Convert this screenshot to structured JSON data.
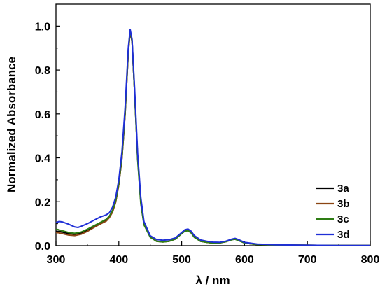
{
  "chart_data": {
    "type": "line",
    "xlabel": "λ / nm",
    "ylabel": "Normalized Absorbance",
    "xlim": [
      300,
      800
    ],
    "ylim": [
      0,
      1.1
    ],
    "xticks": [
      300,
      400,
      500,
      600,
      700,
      800
    ],
    "yticks": [
      0.0,
      0.2,
      0.4,
      0.6,
      0.8,
      1.0
    ],
    "xtick_labels": [
      "300",
      "400",
      "500",
      "600",
      "700",
      "800"
    ],
    "ytick_labels": [
      "0.0",
      "0.2",
      "0.4",
      "0.6",
      "0.8",
      "1.0"
    ],
    "grid": false,
    "legend_position": "bottom-right",
    "series": [
      {
        "name": "3a",
        "color": "#000000",
        "points": [
          [
            300,
            0.065
          ],
          [
            305,
            0.065
          ],
          [
            310,
            0.062
          ],
          [
            320,
            0.055
          ],
          [
            330,
            0.052
          ],
          [
            340,
            0.058
          ],
          [
            350,
            0.07
          ],
          [
            360,
            0.085
          ],
          [
            370,
            0.1
          ],
          [
            380,
            0.115
          ],
          [
            385,
            0.13
          ],
          [
            390,
            0.155
          ],
          [
            395,
            0.2
          ],
          [
            400,
            0.28
          ],
          [
            405,
            0.4
          ],
          [
            410,
            0.6
          ],
          [
            415,
            0.88
          ],
          [
            418,
            0.975
          ],
          [
            421,
            0.93
          ],
          [
            425,
            0.7
          ],
          [
            430,
            0.4
          ],
          [
            435,
            0.2
          ],
          [
            440,
            0.1
          ],
          [
            450,
            0.04
          ],
          [
            460,
            0.02
          ],
          [
            470,
            0.018
          ],
          [
            480,
            0.02
          ],
          [
            490,
            0.03
          ],
          [
            500,
            0.055
          ],
          [
            505,
            0.068
          ],
          [
            510,
            0.07
          ],
          [
            515,
            0.06
          ],
          [
            520,
            0.04
          ],
          [
            530,
            0.02
          ],
          [
            540,
            0.015
          ],
          [
            550,
            0.012
          ],
          [
            560,
            0.012
          ],
          [
            570,
            0.018
          ],
          [
            580,
            0.028
          ],
          [
            585,
            0.03
          ],
          [
            590,
            0.025
          ],
          [
            600,
            0.012
          ],
          [
            620,
            0.005
          ],
          [
            650,
            0.003
          ],
          [
            700,
            0.002
          ],
          [
            750,
            0.001
          ],
          [
            800,
            0.001
          ]
        ]
      },
      {
        "name": "3b",
        "color": "#8b4513",
        "points": [
          [
            300,
            0.06
          ],
          [
            305,
            0.058
          ],
          [
            310,
            0.055
          ],
          [
            320,
            0.048
          ],
          [
            330,
            0.046
          ],
          [
            340,
            0.052
          ],
          [
            350,
            0.065
          ],
          [
            360,
            0.082
          ],
          [
            370,
            0.098
          ],
          [
            380,
            0.112
          ],
          [
            385,
            0.128
          ],
          [
            390,
            0.152
          ],
          [
            395,
            0.198
          ],
          [
            400,
            0.278
          ],
          [
            405,
            0.4
          ],
          [
            410,
            0.6
          ],
          [
            415,
            0.88
          ],
          [
            418,
            0.978
          ],
          [
            421,
            0.932
          ],
          [
            425,
            0.7
          ],
          [
            430,
            0.4
          ],
          [
            435,
            0.2
          ],
          [
            440,
            0.1
          ],
          [
            450,
            0.04
          ],
          [
            460,
            0.02
          ],
          [
            470,
            0.017
          ],
          [
            480,
            0.02
          ],
          [
            490,
            0.03
          ],
          [
            500,
            0.056
          ],
          [
            505,
            0.068
          ],
          [
            510,
            0.072
          ],
          [
            515,
            0.062
          ],
          [
            520,
            0.04
          ],
          [
            530,
            0.02
          ],
          [
            540,
            0.015
          ],
          [
            550,
            0.012
          ],
          [
            560,
            0.012
          ],
          [
            570,
            0.018
          ],
          [
            580,
            0.028
          ],
          [
            585,
            0.031
          ],
          [
            590,
            0.025
          ],
          [
            600,
            0.012
          ],
          [
            620,
            0.005
          ],
          [
            650,
            0.003
          ],
          [
            700,
            0.002
          ],
          [
            750,
            0.001
          ],
          [
            800,
            0.001
          ]
        ]
      },
      {
        "name": "3c",
        "color": "#2e7d14",
        "points": [
          [
            300,
            0.075
          ],
          [
            305,
            0.072
          ],
          [
            310,
            0.068
          ],
          [
            320,
            0.06
          ],
          [
            330,
            0.056
          ],
          [
            340,
            0.062
          ],
          [
            350,
            0.075
          ],
          [
            360,
            0.09
          ],
          [
            370,
            0.105
          ],
          [
            380,
            0.12
          ],
          [
            385,
            0.135
          ],
          [
            390,
            0.16
          ],
          [
            395,
            0.205
          ],
          [
            400,
            0.285
          ],
          [
            405,
            0.41
          ],
          [
            410,
            0.61
          ],
          [
            415,
            0.89
          ],
          [
            418,
            0.98
          ],
          [
            421,
            0.935
          ],
          [
            425,
            0.7
          ],
          [
            430,
            0.39
          ],
          [
            435,
            0.19
          ],
          [
            440,
            0.095
          ],
          [
            450,
            0.038
          ],
          [
            460,
            0.02
          ],
          [
            470,
            0.017
          ],
          [
            480,
            0.02
          ],
          [
            490,
            0.03
          ],
          [
            500,
            0.055
          ],
          [
            505,
            0.066
          ],
          [
            510,
            0.068
          ],
          [
            515,
            0.058
          ],
          [
            520,
            0.038
          ],
          [
            530,
            0.02
          ],
          [
            540,
            0.015
          ],
          [
            550,
            0.012
          ],
          [
            560,
            0.012
          ],
          [
            570,
            0.018
          ],
          [
            580,
            0.027
          ],
          [
            585,
            0.029
          ],
          [
            590,
            0.024
          ],
          [
            600,
            0.012
          ],
          [
            620,
            0.005
          ],
          [
            650,
            0.003
          ],
          [
            700,
            0.002
          ],
          [
            750,
            0.001
          ],
          [
            800,
            0.001
          ]
        ]
      },
      {
        "name": "3d",
        "color": "#1f2fd6",
        "points": [
          [
            300,
            0.105
          ],
          [
            305,
            0.11
          ],
          [
            310,
            0.108
          ],
          [
            320,
            0.098
          ],
          [
            330,
            0.085
          ],
          [
            335,
            0.083
          ],
          [
            340,
            0.088
          ],
          [
            350,
            0.1
          ],
          [
            360,
            0.115
          ],
          [
            370,
            0.13
          ],
          [
            380,
            0.14
          ],
          [
            385,
            0.15
          ],
          [
            390,
            0.175
          ],
          [
            395,
            0.22
          ],
          [
            400,
            0.3
          ],
          [
            405,
            0.43
          ],
          [
            410,
            0.63
          ],
          [
            415,
            0.9
          ],
          [
            418,
            0.985
          ],
          [
            421,
            0.94
          ],
          [
            425,
            0.72
          ],
          [
            430,
            0.42
          ],
          [
            435,
            0.22
          ],
          [
            440,
            0.11
          ],
          [
            450,
            0.045
          ],
          [
            460,
            0.028
          ],
          [
            470,
            0.025
          ],
          [
            480,
            0.027
          ],
          [
            490,
            0.035
          ],
          [
            500,
            0.06
          ],
          [
            505,
            0.072
          ],
          [
            510,
            0.076
          ],
          [
            515,
            0.066
          ],
          [
            520,
            0.046
          ],
          [
            530,
            0.026
          ],
          [
            540,
            0.02
          ],
          [
            550,
            0.016
          ],
          [
            560,
            0.015
          ],
          [
            570,
            0.02
          ],
          [
            580,
            0.03
          ],
          [
            585,
            0.033
          ],
          [
            590,
            0.028
          ],
          [
            600,
            0.015
          ],
          [
            620,
            0.007
          ],
          [
            650,
            0.004
          ],
          [
            700,
            0.002
          ],
          [
            750,
            0.001
          ],
          [
            800,
            0.001
          ]
        ]
      }
    ]
  }
}
